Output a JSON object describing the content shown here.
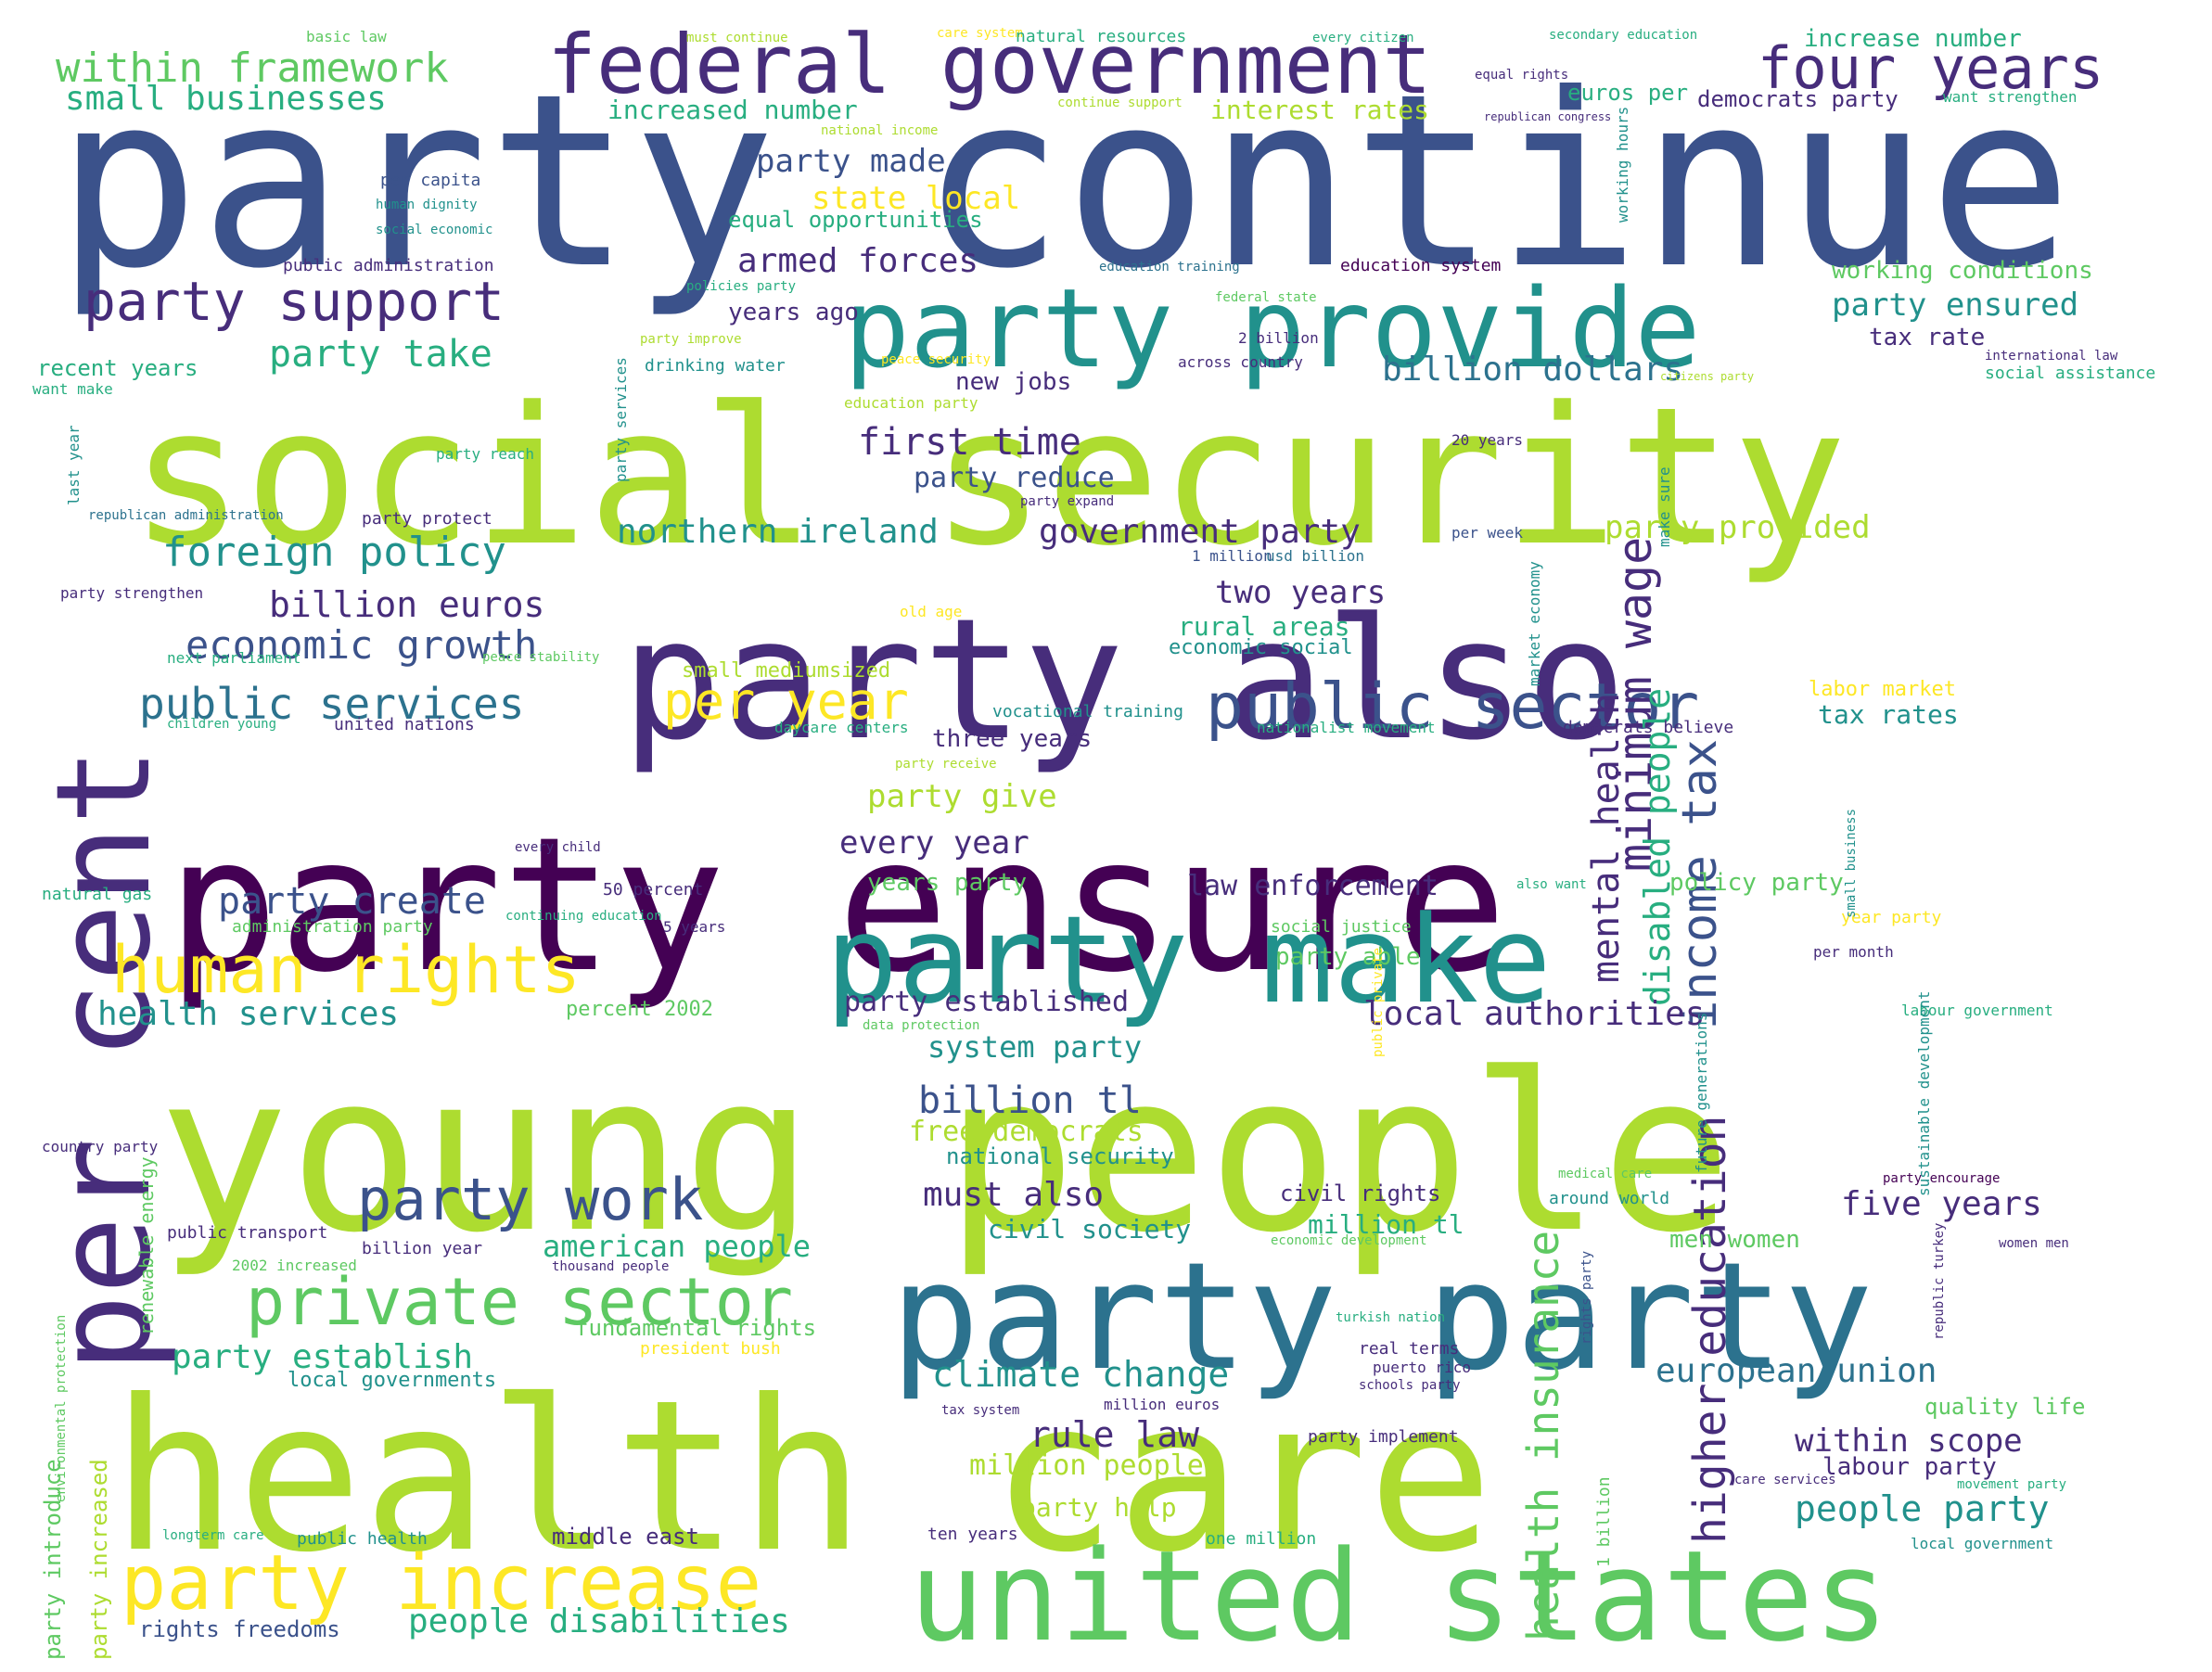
{
  "palette": {
    "background": "#ffffff",
    "viridis": [
      "#440154",
      "#472d7b",
      "#3b528b",
      "#2c728e",
      "#21918c",
      "#28ae80",
      "#5ec962",
      "#addc30",
      "#fde725"
    ]
  },
  "words": [
    {
      "id": "party-continue",
      "text": "party continue"
    },
    {
      "id": "social-security",
      "text": "social security"
    },
    {
      "id": "young-people",
      "text": "young people"
    },
    {
      "id": "party-ensure",
      "text": "party ensure"
    },
    {
      "id": "health-care",
      "text": "health care"
    },
    {
      "id": "party-also",
      "text": "party also"
    },
    {
      "id": "party-party",
      "text": "party party"
    },
    {
      "id": "united-states",
      "text": "united states"
    },
    {
      "id": "party-provide",
      "text": "party provide"
    },
    {
      "id": "party-make",
      "text": "party make"
    },
    {
      "id": "per-cent",
      "text": "per cent"
    },
    {
      "id": "federal-government",
      "text": "federal government"
    },
    {
      "id": "party-increase",
      "text": "party increase"
    },
    {
      "id": "private-sector",
      "text": "private sector"
    },
    {
      "id": "human-rights",
      "text": "human rights"
    },
    {
      "id": "public-sector",
      "text": "public sector"
    },
    {
      "id": "four-years",
      "text": "four years"
    },
    {
      "id": "party-support",
      "text": "party support"
    },
    {
      "id": "party-work",
      "text": "party work"
    },
    {
      "id": "income-tax",
      "text": "income tax"
    },
    {
      "id": "minimum-wage",
      "text": "minimum wage"
    },
    {
      "id": "health-insurance",
      "text": "health insurance"
    },
    {
      "id": "higher-education",
      "text": "higher education"
    },
    {
      "id": "mental-health",
      "text": "mental health"
    },
    {
      "id": "disabled-people",
      "text": "disabled people"
    },
    {
      "id": "per-year",
      "text": "per year"
    },
    {
      "id": "public-services",
      "text": "public services"
    },
    {
      "id": "economic-growth",
      "text": "economic growth"
    },
    {
      "id": "foreign-policy",
      "text": "foreign policy"
    },
    {
      "id": "within-framework",
      "text": "within framework"
    },
    {
      "id": "small-businesses",
      "text": "small businesses"
    },
    {
      "id": "party-take",
      "text": "party take"
    },
    {
      "id": "billion-euros",
      "text": "billion euros"
    },
    {
      "id": "armed-forces",
      "text": "armed forces"
    },
    {
      "id": "first-time",
      "text": "first time"
    },
    {
      "id": "party-made",
      "text": "party made"
    },
    {
      "id": "state-local",
      "text": "state local"
    },
    {
      "id": "billion-dollars",
      "text": "billion dollars"
    },
    {
      "id": "northern-ireland",
      "text": "northern ireland"
    },
    {
      "id": "government-party",
      "text": "government party"
    },
    {
      "id": "party-create",
      "text": "party create"
    },
    {
      "id": "health-services",
      "text": "health services"
    },
    {
      "id": "local-authorities",
      "text": "local authorities"
    },
    {
      "id": "party-establish",
      "text": "party establish"
    },
    {
      "id": "climate-change",
      "text": "climate change"
    },
    {
      "id": "european-union",
      "text": "european union"
    },
    {
      "id": "people-disabilities",
      "text": "people disabilities"
    },
    {
      "id": "rule-law",
      "text": "rule law"
    },
    {
      "id": "billion-tl",
      "text": "billion tl"
    },
    {
      "id": "must-also",
      "text": "must also"
    },
    {
      "id": "five-years",
      "text": "five years"
    },
    {
      "id": "people-party",
      "text": "people party"
    },
    {
      "id": "within-scope",
      "text": "within scope"
    },
    {
      "id": "american-people",
      "text": "american people"
    },
    {
      "id": "party-ensured",
      "text": "party ensured"
    },
    {
      "id": "party-provided",
      "text": "party provided"
    },
    {
      "id": "two-years",
      "text": "two years"
    },
    {
      "id": "every-year",
      "text": "every year"
    },
    {
      "id": "party-give",
      "text": "party give"
    },
    {
      "id": "system-party",
      "text": "system party"
    },
    {
      "id": "law-enforcement",
      "text": "law enforcement"
    },
    {
      "id": "party-established",
      "text": "party established"
    },
    {
      "id": "increase-number",
      "text": "increase number"
    },
    {
      "id": "democrats-party",
      "text": "democrats party"
    },
    {
      "id": "interest-rates",
      "text": "interest rates"
    },
    {
      "id": "increased-number",
      "text": "increased number"
    },
    {
      "id": "euros-per",
      "text": "euros per"
    },
    {
      "id": "equal-opportunities",
      "text": "equal opportunities"
    },
    {
      "id": "working-conditions",
      "text": "working conditions"
    },
    {
      "id": "tax-rate",
      "text": "tax rate"
    },
    {
      "id": "tax-rates",
      "text": "tax rates"
    },
    {
      "id": "new-jobs",
      "text": "new jobs"
    },
    {
      "id": "party-reduce",
      "text": "party reduce"
    },
    {
      "id": "rural-areas",
      "text": "rural areas"
    },
    {
      "id": "economic-social",
      "text": "economic social"
    },
    {
      "id": "three-years",
      "text": "three years"
    },
    {
      "id": "years-ago",
      "text": "years ago"
    },
    {
      "id": "recent-years",
      "text": "recent years"
    },
    {
      "id": "free-democrats",
      "text": "free democrats"
    },
    {
      "id": "national-security",
      "text": "national security"
    },
    {
      "id": "civil-society",
      "text": "civil society"
    },
    {
      "id": "million-tl",
      "text": "million tl"
    },
    {
      "id": "civil-rights",
      "text": "civil rights"
    },
    {
      "id": "men-women",
      "text": "men women"
    },
    {
      "id": "fundamental-rights",
      "text": "fundamental rights"
    },
    {
      "id": "local-governments",
      "text": "local governments"
    },
    {
      "id": "million-people",
      "text": "million people"
    },
    {
      "id": "party-help",
      "text": "party help"
    },
    {
      "id": "labour-party",
      "text": "labour party"
    },
    {
      "id": "quality-life",
      "text": "quality life"
    },
    {
      "id": "middle-east",
      "text": "middle east"
    },
    {
      "id": "rights-freedoms",
      "text": "rights freedoms"
    },
    {
      "id": "years-party",
      "text": "years party"
    },
    {
      "id": "policy-party",
      "text": "policy party"
    },
    {
      "id": "party-able",
      "text": "party able"
    },
    {
      "id": "percent-2002",
      "text": "percent 2002"
    },
    {
      "id": "labor-market",
      "text": "labor market"
    },
    {
      "id": "small-mediumsized",
      "text": "small mediumsized"
    },
    {
      "id": "social-justice",
      "text": "social justice"
    },
    {
      "id": "year-party",
      "text": "year party"
    },
    {
      "id": "party-introduce",
      "text": "party introduce"
    },
    {
      "id": "party-increased",
      "text": "party increased"
    },
    {
      "id": "renewable-energy",
      "text": "renewable energy"
    },
    {
      "id": "basic-law",
      "text": "basic law"
    },
    {
      "id": "must-continue",
      "text": "must continue"
    },
    {
      "id": "care-system",
      "text": "care system"
    },
    {
      "id": "natural-resources",
      "text": "natural resources"
    },
    {
      "id": "every-citizen",
      "text": "every citizen"
    },
    {
      "id": "secondary-education",
      "text": "secondary education"
    },
    {
      "id": "equal-rights",
      "text": "equal rights"
    },
    {
      "id": "continue-support",
      "text": "continue support"
    },
    {
      "id": "national-income",
      "text": "national income"
    },
    {
      "id": "republican-congress",
      "text": "republican congress"
    },
    {
      "id": "want-strengthen",
      "text": "want strengthen"
    },
    {
      "id": "per-capita",
      "text": "per capita"
    },
    {
      "id": "human-dignity",
      "text": "human dignity"
    },
    {
      "id": "social-economic",
      "text": "social economic"
    },
    {
      "id": "public-administration",
      "text": "public administration"
    },
    {
      "id": "policies-party",
      "text": "policies party"
    },
    {
      "id": "education-training",
      "text": "education training"
    },
    {
      "id": "education-system",
      "text": "education system"
    },
    {
      "id": "federal-state",
      "text": "federal state"
    },
    {
      "id": "party-improve",
      "text": "party improve"
    },
    {
      "id": "2-billion",
      "text": "2 billion"
    },
    {
      "id": "international-law",
      "text": "international law"
    },
    {
      "id": "peace-security",
      "text": "peace security"
    },
    {
      "id": "across-country",
      "text": "across country"
    },
    {
      "id": "drinking-water",
      "text": "drinking water"
    },
    {
      "id": "want-make",
      "text": "want make"
    },
    {
      "id": "citizens-party",
      "text": "citizens party"
    },
    {
      "id": "social-assistance",
      "text": "social assistance"
    },
    {
      "id": "education-party",
      "text": "education party"
    },
    {
      "id": "20-years",
      "text": "20 years"
    },
    {
      "id": "party-reach",
      "text": "party reach"
    },
    {
      "id": "last-year",
      "text": "last year"
    },
    {
      "id": "working-hours",
      "text": "working hours"
    },
    {
      "id": "party-services",
      "text": "party services"
    },
    {
      "id": "republican-administration",
      "text": "republican administration"
    },
    {
      "id": "party-protect",
      "text": "party protect"
    },
    {
      "id": "party-expand",
      "text": "party expand"
    },
    {
      "id": "per-week",
      "text": "per week"
    },
    {
      "id": "make-sure",
      "text": "make sure"
    },
    {
      "id": "1-million",
      "text": "1 million"
    },
    {
      "id": "usd-billion",
      "text": "usd billion"
    },
    {
      "id": "party-strengthen",
      "text": "party strengthen"
    },
    {
      "id": "old-age",
      "text": "old age"
    },
    {
      "id": "next-parliament",
      "text": "next parliament"
    },
    {
      "id": "peace-stability",
      "text": "peace stability"
    },
    {
      "id": "market-economy",
      "text": "market economy"
    },
    {
      "id": "children-young",
      "text": "children young"
    },
    {
      "id": "united-nations",
      "text": "united nations"
    },
    {
      "id": "vocational-training",
      "text": "vocational training"
    },
    {
      "id": "daycare-centers",
      "text": "daycare centers"
    },
    {
      "id": "nationalist-movement",
      "text": "nationalist movement"
    },
    {
      "id": "democrats-believe",
      "text": "democrats believe"
    },
    {
      "id": "party-receive",
      "text": "party receive"
    },
    {
      "id": "every-child",
      "text": "every child"
    },
    {
      "id": "natural-gas",
      "text": "natural gas"
    },
    {
      "id": "50-percent",
      "text": "50 percent"
    },
    {
      "id": "continuing-education",
      "text": "continuing education"
    },
    {
      "id": "also-want",
      "text": "also want"
    },
    {
      "id": "administration-party",
      "text": "administration party"
    },
    {
      "id": "5-years",
      "text": "5 years"
    },
    {
      "id": "small-business",
      "text": "small business"
    },
    {
      "id": "per-month",
      "text": "per month"
    },
    {
      "id": "data-protection",
      "text": "data protection"
    },
    {
      "id": "labour-government",
      "text": "labour government"
    },
    {
      "id": "public-private",
      "text": "public private"
    },
    {
      "id": "future-generations",
      "text": "future generations"
    },
    {
      "id": "country-party",
      "text": "country party"
    },
    {
      "id": "medical-care",
      "text": "medical care"
    },
    {
      "id": "party-encourage",
      "text": "party encourage"
    },
    {
      "id": "sustainable-development",
      "text": "sustainable development"
    },
    {
      "id": "around-world",
      "text": "around world"
    },
    {
      "id": "public-transport",
      "text": "public transport"
    },
    {
      "id": "billion-year",
      "text": "billion year"
    },
    {
      "id": "economic-development",
      "text": "economic development"
    },
    {
      "id": "women-men",
      "text": "women men"
    },
    {
      "id": "2002-increased",
      "text": "2002 increased"
    },
    {
      "id": "thousand-people",
      "text": "thousand people"
    },
    {
      "id": "turkish-nation",
      "text": "turkish nation"
    },
    {
      "id": "rights-party",
      "text": "rights party"
    },
    {
      "id": "republic-turkey",
      "text": "republic turkey"
    },
    {
      "id": "president-bush",
      "text": "president bush"
    },
    {
      "id": "real-terms",
      "text": "real terms"
    },
    {
      "id": "puerto-rico",
      "text": "puerto rico"
    },
    {
      "id": "schools-party",
      "text": "schools party"
    },
    {
      "id": "tax-system",
      "text": "tax system"
    },
    {
      "id": "million-euros",
      "text": "million euros"
    },
    {
      "id": "party-implement",
      "text": "party implement"
    },
    {
      "id": "care-services",
      "text": "care services"
    },
    {
      "id": "movement-party",
      "text": "movement party"
    },
    {
      "id": "environmental-protection",
      "text": "environmental protection"
    },
    {
      "id": "longterm-care",
      "text": "longterm care"
    },
    {
      "id": "public-health",
      "text": "public health"
    },
    {
      "id": "ten-years",
      "text": "ten years"
    },
    {
      "id": "one-million",
      "text": "one million"
    },
    {
      "id": "1-billion",
      "text": "1 billion"
    },
    {
      "id": "local-government",
      "text": "local government"
    }
  ]
}
